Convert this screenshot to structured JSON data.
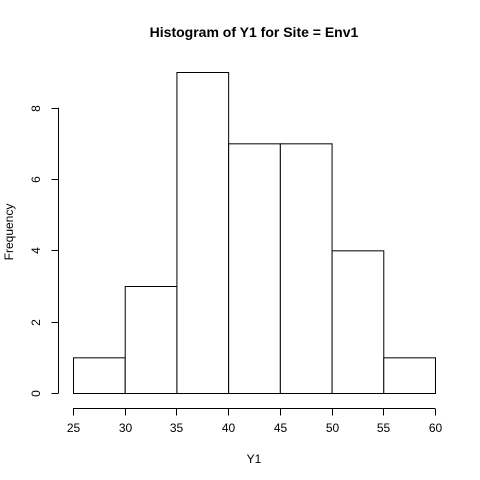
{
  "chart_data": {
    "type": "bar",
    "title": "Histogram of Y1 for Site = Env1",
    "xlabel": "Y1",
    "ylabel": "Frequency",
    "bin_edges": [
      25,
      30,
      35,
      40,
      45,
      50,
      55,
      60
    ],
    "values": [
      1,
      3,
      9,
      7,
      7,
      4,
      1
    ],
    "xticks": [
      25,
      30,
      35,
      40,
      45,
      50,
      55,
      60
    ],
    "yticks": [
      0,
      2,
      4,
      6,
      8
    ],
    "xlim": [
      25,
      60
    ],
    "ylim": [
      0,
      9
    ],
    "grid": false,
    "bar_fill": "#ffffff",
    "bar_stroke": "#000000"
  }
}
